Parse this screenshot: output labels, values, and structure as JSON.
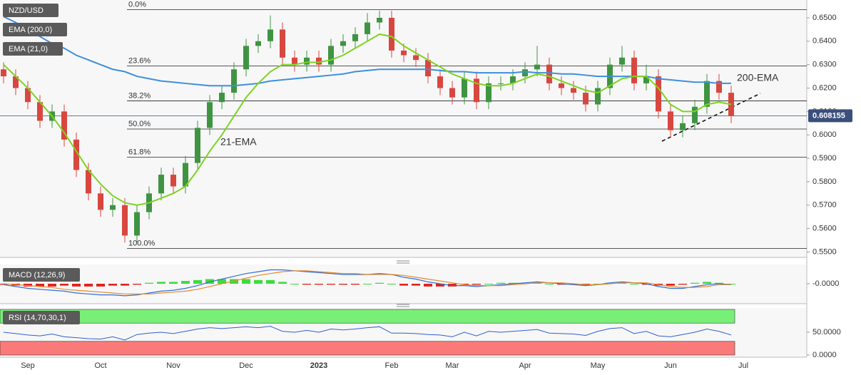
{
  "chart_data": [
    {
      "type": "candlestick",
      "title": "NZD/USD",
      "categories": [
        null,
        null,
        "Sep",
        null,
        null,
        null,
        null,
        null,
        "Oct",
        null,
        null,
        null,
        null,
        null,
        "Nov",
        null,
        null,
        null,
        null,
        null,
        "Dec",
        null,
        null,
        null,
        null,
        null,
        "2023",
        null,
        null,
        null,
        null,
        null,
        "Feb",
        null,
        null,
        null,
        null,
        "Mar",
        null,
        null,
        null,
        null,
        null,
        "Apr",
        null,
        null,
        null,
        null,
        null,
        "May",
        null,
        null,
        null,
        null,
        null,
        "Jun",
        null,
        null,
        null,
        null,
        null,
        "Jul"
      ],
      "open": [
        0.628,
        0.625,
        0.62,
        0.614,
        0.606,
        0.61,
        0.598,
        0.585,
        0.575,
        0.568,
        0.57,
        0.557,
        0.567,
        0.575,
        0.583,
        0.578,
        0.588,
        0.603,
        0.614,
        0.618,
        0.628,
        0.638,
        0.64,
        0.645,
        0.633,
        0.63,
        0.633,
        0.63,
        0.638,
        0.64,
        0.643,
        0.648,
        0.65,
        0.636,
        0.634,
        0.632,
        0.625,
        0.62,
        0.616,
        0.624,
        0.614,
        0.622,
        0.622,
        0.625,
        0.628,
        0.63,
        0.622,
        0.62,
        0.618,
        0.613,
        0.62,
        0.63,
        0.633,
        0.622,
        0.625,
        0.61,
        0.602,
        0.605,
        0.612,
        0.623,
        0.618,
        null
      ],
      "high": [
        0.631,
        0.628,
        0.623,
        0.617,
        0.613,
        0.613,
        0.601,
        0.588,
        0.578,
        0.573,
        0.573,
        0.57,
        0.578,
        0.586,
        0.586,
        0.591,
        0.606,
        0.617,
        0.621,
        0.631,
        0.641,
        0.643,
        0.651,
        0.648,
        0.636,
        0.636,
        0.636,
        0.641,
        0.643,
        0.646,
        0.652,
        0.653,
        0.653,
        0.639,
        0.637,
        0.635,
        0.628,
        0.623,
        0.627,
        0.627,
        0.625,
        0.625,
        0.628,
        0.631,
        0.638,
        0.633,
        0.625,
        0.623,
        0.621,
        0.623,
        0.633,
        0.638,
        0.636,
        0.63,
        0.628,
        0.613,
        0.608,
        0.615,
        0.626,
        0.626,
        0.621,
        null
      ],
      "low": [
        0.622,
        0.617,
        0.611,
        0.603,
        0.603,
        0.595,
        0.582,
        0.572,
        0.565,
        0.565,
        0.554,
        0.554,
        0.564,
        0.572,
        0.575,
        0.575,
        0.585,
        0.6,
        0.611,
        0.615,
        0.625,
        0.635,
        0.637,
        0.63,
        0.627,
        0.627,
        0.627,
        0.627,
        0.635,
        0.637,
        0.64,
        0.645,
        0.633,
        0.631,
        0.629,
        0.622,
        0.617,
        0.613,
        0.613,
        0.611,
        0.611,
        0.619,
        0.619,
        0.622,
        0.625,
        0.619,
        0.617,
        0.615,
        0.61,
        0.61,
        0.617,
        0.627,
        0.619,
        0.619,
        0.607,
        0.599,
        0.599,
        0.602,
        0.609,
        0.615,
        0.605,
        null
      ],
      "close": [
        0.625,
        0.62,
        0.614,
        0.606,
        0.61,
        0.598,
        0.585,
        0.575,
        0.568,
        0.57,
        0.557,
        0.567,
        0.575,
        0.583,
        0.578,
        0.588,
        0.603,
        0.614,
        0.618,
        0.628,
        0.638,
        0.64,
        0.645,
        0.633,
        0.63,
        0.633,
        0.63,
        0.638,
        0.64,
        0.643,
        0.648,
        0.65,
        0.636,
        0.634,
        0.632,
        0.625,
        0.62,
        0.616,
        0.624,
        0.614,
        0.622,
        0.622,
        0.625,
        0.628,
        0.63,
        0.622,
        0.62,
        0.618,
        0.613,
        0.62,
        0.63,
        0.633,
        0.622,
        0.625,
        0.61,
        0.602,
        0.605,
        0.612,
        0.623,
        0.618,
        0.608,
        null
      ],
      "up_color": "#3f9442",
      "down_color": "#d8473f",
      "series": [
        {
          "name": "EMA (200,0)",
          "color": "#3d8fdc",
          "values": [
            0.6505,
            0.648,
            0.645,
            0.642,
            0.639,
            0.637,
            0.634,
            0.632,
            0.63,
            0.628,
            0.627,
            0.625,
            0.624,
            0.623,
            0.6225,
            0.622,
            0.6215,
            0.621,
            0.621,
            0.621,
            0.6215,
            0.622,
            0.623,
            0.6235,
            0.624,
            0.6245,
            0.625,
            0.6255,
            0.626,
            0.627,
            0.6275,
            0.628,
            0.628,
            0.628,
            0.628,
            0.628,
            0.6275,
            0.627,
            0.627,
            0.6265,
            0.6265,
            0.6265,
            0.6265,
            0.627,
            0.6265,
            0.6265,
            0.626,
            0.626,
            0.6255,
            0.625,
            0.625,
            0.625,
            0.625,
            0.625,
            0.624,
            0.6235,
            0.623,
            0.6225,
            0.6225,
            0.622,
            0.622,
            null
          ]
        },
        {
          "name": "EMA (21,0)",
          "color": "#7ed321",
          "values": [
            0.63,
            0.625,
            0.62,
            0.614,
            0.608,
            0.601,
            0.593,
            0.585,
            0.579,
            0.574,
            0.571,
            0.57,
            0.571,
            0.573,
            0.575,
            0.578,
            0.585,
            0.593,
            0.6,
            0.608,
            0.616,
            0.622,
            0.627,
            0.63,
            0.63,
            0.631,
            0.631,
            0.632,
            0.634,
            0.637,
            0.64,
            0.643,
            0.642,
            0.638,
            0.635,
            0.632,
            0.629,
            0.626,
            0.624,
            0.622,
            0.621,
            0.621,
            0.622,
            0.624,
            0.626,
            0.625,
            0.623,
            0.621,
            0.619,
            0.618,
            0.621,
            0.624,
            0.625,
            0.625,
            0.62,
            0.613,
            0.61,
            0.61,
            0.613,
            0.614,
            0.613,
            null
          ]
        }
      ],
      "annotations": [
        "200-EMA",
        "21-EMA"
      ],
      "fibonacci": [
        {
          "label": "0.0%",
          "value": 0.6535
        },
        {
          "label": "23.6%",
          "value": 0.6294
        },
        {
          "label": "38.2%",
          "value": 0.6145
        },
        {
          "label": "50.0%",
          "value": 0.6025
        },
        {
          "label": "61.8%",
          "value": 0.5905
        },
        {
          "label": "100.0%",
          "value": 0.5515
        }
      ],
      "last_price": 0.608155,
      "ylim": [
        0.548,
        0.6576
      ],
      "yticks": [
        {
          "value": 0.55,
          "label": "0.5500"
        },
        {
          "value": 0.56,
          "label": "0.5600"
        },
        {
          "value": 0.57,
          "label": "0.5700"
        },
        {
          "value": 0.58,
          "label": "0.5800"
        },
        {
          "value": 0.59,
          "label": "0.5900"
        },
        {
          "value": 0.6,
          "label": "0.6000"
        },
        {
          "value": 0.61,
          "label": "0.6100"
        },
        {
          "value": 0.62,
          "label": "0.6200"
        },
        {
          "value": 0.63,
          "label": "0.6300"
        },
        {
          "value": 0.64,
          "label": "0.6400"
        },
        {
          "value": 0.65,
          "label": "0.6500"
        }
      ]
    },
    {
      "type": "macd",
      "title": "MACD (12,26,9)",
      "series": [
        {
          "color": "#2f6fd6",
          "values": [
            -0.001,
            -0.003,
            -0.005,
            -0.006,
            -0.007,
            -0.008,
            -0.01,
            -0.011,
            -0.012,
            -0.012,
            -0.013,
            -0.012,
            -0.01,
            -0.008,
            -0.007,
            -0.005,
            -0.002,
            0.002,
            0.005,
            0.008,
            0.011,
            0.013,
            0.015,
            0.015,
            0.014,
            0.013,
            0.012,
            0.011,
            0.01,
            0.01,
            0.01,
            0.011,
            0.01,
            0.007,
            0.005,
            0.002,
            0.0,
            -0.002,
            -0.002,
            -0.003,
            -0.002,
            -0.001,
            0.0,
            0.001,
            0.002,
            0.001,
            0.0,
            -0.001,
            -0.002,
            -0.001,
            0.001,
            0.002,
            0.001,
            0.0,
            -0.003,
            -0.005,
            -0.005,
            -0.003,
            -0.001,
            0.0,
            -0.001,
            null
          ]
        },
        {
          "color": "#e8892c",
          "values": [
            0.0,
            -0.001,
            -0.002,
            -0.003,
            -0.004,
            -0.006,
            -0.007,
            -0.008,
            -0.009,
            -0.01,
            -0.011,
            -0.011,
            -0.011,
            -0.01,
            -0.009,
            -0.008,
            -0.006,
            -0.003,
            0.0,
            0.003,
            0.006,
            0.009,
            0.011,
            0.013,
            0.014,
            0.014,
            0.013,
            0.012,
            0.011,
            0.011,
            0.01,
            0.01,
            0.01,
            0.009,
            0.007,
            0.005,
            0.003,
            0.001,
            -0.001,
            -0.002,
            -0.002,
            -0.002,
            -0.001,
            0.0,
            0.001,
            0.001,
            0.001,
            0.0,
            -0.001,
            -0.001,
            0.0,
            0.001,
            0.001,
            0.001,
            -0.001,
            -0.003,
            -0.004,
            -0.004,
            -0.003,
            -0.001,
            -0.001,
            null
          ]
        }
      ],
      "histogram": [
        -0.001,
        -0.002,
        -0.003,
        -0.003,
        -0.003,
        -0.002,
        -0.003,
        -0.003,
        -0.003,
        -0.002,
        -0.002,
        -0.001,
        0.001,
        0.002,
        0.002,
        0.003,
        0.004,
        0.005,
        0.005,
        0.005,
        0.005,
        0.004,
        0.004,
        0.002,
        0.0,
        -0.001,
        -0.001,
        -0.001,
        -0.001,
        -0.001,
        0.0,
        0.001,
        0.0,
        -0.002,
        -0.002,
        -0.003,
        -0.003,
        -0.003,
        -0.001,
        -0.001,
        0.0,
        0.001,
        0.001,
        0.001,
        0.001,
        0.0,
        -0.001,
        -0.001,
        -0.001,
        0.0,
        0.001,
        0.001,
        0.0,
        -0.001,
        -0.002,
        -0.002,
        -0.001,
        0.001,
        0.002,
        0.001,
        0.0,
        null
      ],
      "hist_up_color": "#3ddc3d",
      "hist_down_color": "#e0231c",
      "ylim": [
        -0.02,
        0.02
      ],
      "yticks": [
        {
          "value": 0,
          "label": "-0.0000"
        }
      ]
    },
    {
      "type": "rsi",
      "title": "RSI (14,70,30,1)",
      "series": [
        {
          "color": "#2f5fd0",
          "values": [
            50,
            47,
            44,
            42,
            46,
            40,
            38,
            36,
            35,
            40,
            33,
            45,
            48,
            50,
            47,
            52,
            57,
            60,
            58,
            60,
            62,
            60,
            63,
            52,
            50,
            54,
            50,
            57,
            55,
            57,
            60,
            62,
            48,
            48,
            47,
            45,
            44,
            40,
            50,
            42,
            52,
            50,
            52,
            54,
            56,
            48,
            47,
            46,
            43,
            52,
            58,
            60,
            47,
            52,
            42,
            40,
            45,
            50,
            57,
            52,
            44,
            null
          ]
        }
      ],
      "overbought": 70,
      "oversold": 30,
      "overbought_color": "#78f078",
      "oversold_color": "#fa7a7a",
      "ylim": [
        0,
        100
      ],
      "yticks": [
        {
          "value": 50,
          "label": "50.0000"
        },
        {
          "value": 0,
          "label": "0.0000"
        }
      ]
    }
  ]
}
